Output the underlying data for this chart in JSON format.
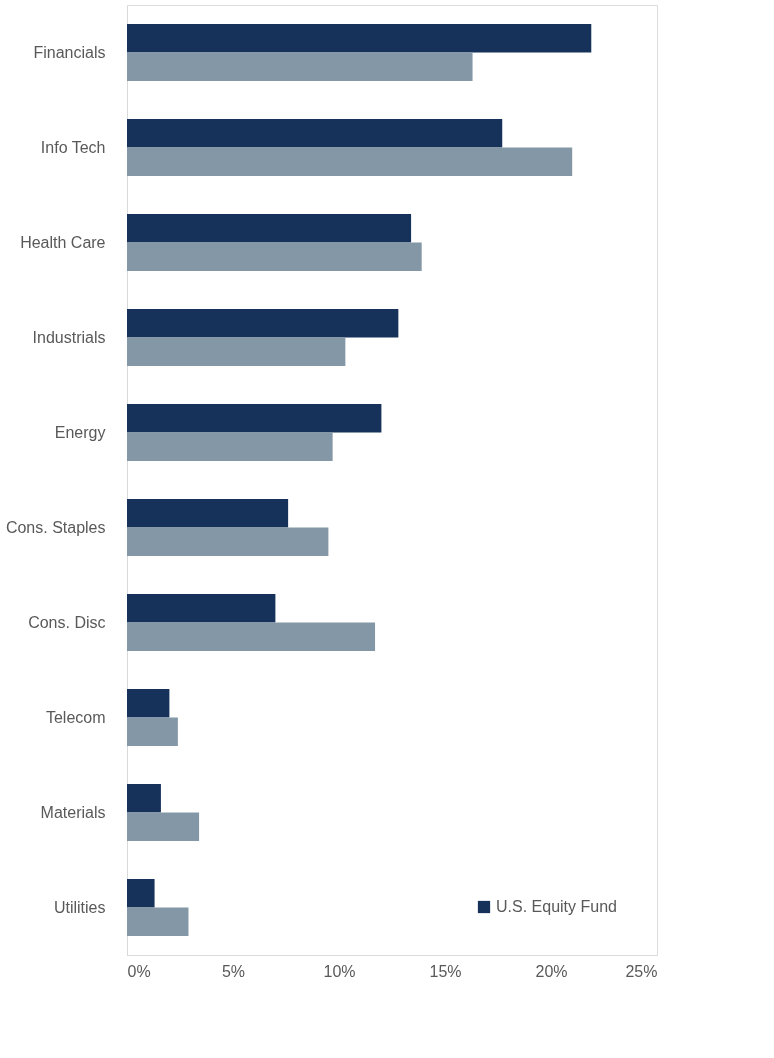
{
  "chart_data": {
    "type": "bar",
    "orientation": "horizontal",
    "categories": [
      "Financials",
      "Info Tech",
      "Health Care",
      "Industrials",
      "Energy",
      "Cons. Staples",
      "Cons. Disc",
      "Telecom",
      "Materials",
      "Utilities"
    ],
    "series": [
      {
        "name": "U.S. Equity Fund",
        "color": "#17325a",
        "values": [
          21.9,
          17.7,
          13.4,
          12.8,
          12.0,
          7.6,
          7.0,
          2.0,
          1.6,
          1.3
        ]
      },
      {
        "color": "#8497a6",
        "values": [
          16.3,
          21.0,
          13.9,
          10.3,
          9.7,
          9.5,
          11.7,
          2.4,
          3.4,
          2.9
        ]
      }
    ],
    "xlim": [
      0,
      25
    ],
    "xticks": [
      {
        "value": 0,
        "label": "0%"
      },
      {
        "value": 5,
        "label": "5%"
      },
      {
        "value": 10,
        "label": "10%"
      },
      {
        "value": 15,
        "label": "15%"
      },
      {
        "value": 20,
        "label": "20%"
      },
      {
        "value": 25,
        "label": "25%"
      }
    ],
    "grid": false,
    "legend": "bottom right"
  }
}
